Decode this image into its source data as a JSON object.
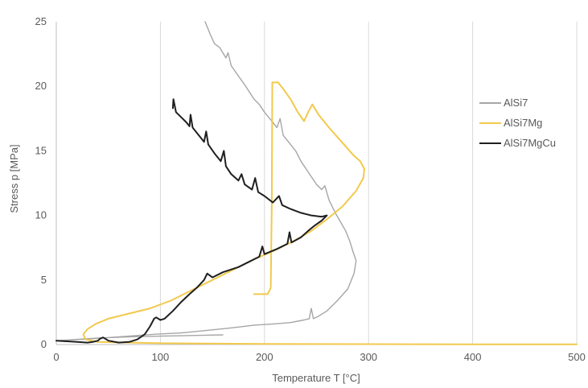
{
  "chart_data": {
    "type": "line",
    "title": "",
    "xlabel": "Temperature T [°C]",
    "ylabel": "Stress p [MPa]",
    "xlim": [
      0,
      500
    ],
    "ylim": [
      0,
      25
    ],
    "x_ticks": [
      "0",
      "100",
      "200",
      "300",
      "400",
      "500"
    ],
    "y_ticks": [
      "0",
      "5",
      "10",
      "15",
      "20",
      "25"
    ],
    "grid": "vertical",
    "legend": "right",
    "series": [
      {
        "name": "AlSi7",
        "color": "#a6a6a6",
        "points": [
          [
            143,
            25
          ],
          [
            148,
            24
          ],
          [
            152,
            23.3
          ],
          [
            157,
            23
          ],
          [
            160,
            22.6
          ],
          [
            163,
            22.2
          ],
          [
            165,
            22.6
          ],
          [
            168,
            21.6
          ],
          [
            175,
            20.8
          ],
          [
            182,
            20
          ],
          [
            190,
            19
          ],
          [
            195,
            18.6
          ],
          [
            200,
            18
          ],
          [
            205,
            17.5
          ],
          [
            212,
            16.8
          ],
          [
            215,
            17.5
          ],
          [
            218,
            16.2
          ],
          [
            225,
            15.5
          ],
          [
            230,
            15
          ],
          [
            235,
            14.2
          ],
          [
            240,
            13.6
          ],
          [
            245,
            13
          ],
          [
            250,
            12.4
          ],
          [
            255,
            12
          ],
          [
            258,
            12.3
          ],
          [
            262,
            11.2
          ],
          [
            268,
            10.2
          ],
          [
            273,
            9.5
          ],
          [
            278,
            8.8
          ],
          [
            282,
            8
          ],
          [
            285,
            7.2
          ],
          [
            288,
            6.5
          ],
          [
            286,
            5.5
          ],
          [
            280,
            4.3
          ],
          [
            270,
            3.4
          ],
          [
            260,
            2.6
          ],
          [
            252,
            2.2
          ],
          [
            247,
            2.0
          ],
          [
            245,
            2.8
          ],
          [
            243,
            2.0
          ],
          [
            238,
            1.9
          ],
          [
            225,
            1.7
          ],
          [
            210,
            1.6
          ],
          [
            190,
            1.5
          ],
          [
            170,
            1.3
          ],
          [
            145,
            1.1
          ],
          [
            120,
            0.9
          ],
          [
            95,
            0.8
          ],
          [
            60,
            0.6
          ],
          [
            35,
            0.45
          ],
          [
            0,
            0.3
          ],
          [
            20,
            0.4
          ],
          [
            40,
            0.5
          ],
          [
            70,
            0.6
          ],
          [
            100,
            0.65
          ],
          [
            130,
            0.7
          ],
          [
            160,
            0.75
          ]
        ]
      },
      {
        "name": "AlSi7Mg",
        "color": "#f2c94c",
        "points": [
          [
            190,
            3.9
          ],
          [
            203,
            3.9
          ],
          [
            206,
            4.4
          ],
          [
            207,
            11
          ],
          [
            207.5,
            20.3
          ],
          [
            213,
            20.3
          ],
          [
            218,
            19.8
          ],
          [
            225,
            19
          ],
          [
            232,
            18
          ],
          [
            238,
            17.3
          ],
          [
            242,
            18
          ],
          [
            246,
            18.6
          ],
          [
            252,
            17.8
          ],
          [
            262,
            16.8
          ],
          [
            273,
            15.8
          ],
          [
            285,
            14.7
          ],
          [
            292,
            14.2
          ],
          [
            296,
            13.6
          ],
          [
            295,
            12.9
          ],
          [
            288,
            11.9
          ],
          [
            275,
            10.7
          ],
          [
            260,
            9.7
          ],
          [
            245,
            8.8
          ],
          [
            230,
            8.1
          ],
          [
            210,
            7.3
          ],
          [
            190,
            6.6
          ],
          [
            170,
            5.8
          ],
          [
            150,
            5.0
          ],
          [
            130,
            4.2
          ],
          [
            110,
            3.4
          ],
          [
            90,
            2.8
          ],
          [
            70,
            2.4
          ],
          [
            50,
            2.0
          ],
          [
            38,
            1.6
          ],
          [
            30,
            1.2
          ],
          [
            26,
            0.8
          ],
          [
            28,
            0.4
          ],
          [
            40,
            0.2
          ],
          [
            100,
            0.1
          ],
          [
            200,
            0.05
          ],
          [
            300,
            0.03
          ],
          [
            400,
            0.02
          ],
          [
            500,
            0.02
          ]
        ]
      },
      {
        "name": "AlSi7MgCu",
        "color": "#1f1f1f",
        "points": [
          [
            112,
            18.3
          ],
          [
            112.5,
            19
          ],
          [
            115,
            18
          ],
          [
            120,
            17.6
          ],
          [
            125,
            17.2
          ],
          [
            128,
            16.9
          ],
          [
            129,
            17.8
          ],
          [
            131,
            16.8
          ],
          [
            137,
            16.2
          ],
          [
            142,
            15.7
          ],
          [
            144,
            16.5
          ],
          [
            146,
            15.5
          ],
          [
            152,
            14.8
          ],
          [
            158,
            14.2
          ],
          [
            161,
            15.0
          ],
          [
            163,
            13.8
          ],
          [
            168,
            13.2
          ],
          [
            175,
            12.7
          ],
          [
            178,
            13.2
          ],
          [
            181,
            12.4
          ],
          [
            188,
            12.0
          ],
          [
            191,
            12.9
          ],
          [
            194,
            11.8
          ],
          [
            200,
            11.5
          ],
          [
            208,
            11.0
          ],
          [
            214,
            11.5
          ],
          [
            217,
            10.8
          ],
          [
            225,
            10.5
          ],
          [
            235,
            10.2
          ],
          [
            245,
            10.0
          ],
          [
            255,
            9.9
          ],
          [
            260,
            10.0
          ],
          [
            255,
            9.6
          ],
          [
            248,
            9.2
          ],
          [
            242,
            8.8
          ],
          [
            235,
            8.3
          ],
          [
            226,
            7.9
          ],
          [
            224,
            8.7
          ],
          [
            222,
            7.8
          ],
          [
            212,
            7.4
          ],
          [
            200,
            7.0
          ],
          [
            198,
            7.6
          ],
          [
            195,
            6.8
          ],
          [
            185,
            6.4
          ],
          [
            175,
            6.0
          ],
          [
            160,
            5.6
          ],
          [
            150,
            5.2
          ],
          [
            145,
            5.5
          ],
          [
            142,
            5.0
          ],
          [
            135,
            4.4
          ],
          [
            128,
            3.9
          ],
          [
            120,
            3.3
          ],
          [
            112,
            2.6
          ],
          [
            104,
            2.0
          ],
          [
            100,
            1.9
          ],
          [
            96,
            2.1
          ],
          [
            94,
            2.0
          ],
          [
            90,
            1.4
          ],
          [
            85,
            0.8
          ],
          [
            78,
            0.4
          ],
          [
            70,
            0.2
          ],
          [
            60,
            0.15
          ],
          [
            50,
            0.3
          ],
          [
            45,
            0.55
          ],
          [
            42,
            0.45
          ],
          [
            40,
            0.3
          ],
          [
            35,
            0.2
          ],
          [
            30,
            0.15
          ],
          [
            20,
            0.2
          ],
          [
            0,
            0.3
          ]
        ]
      }
    ]
  }
}
